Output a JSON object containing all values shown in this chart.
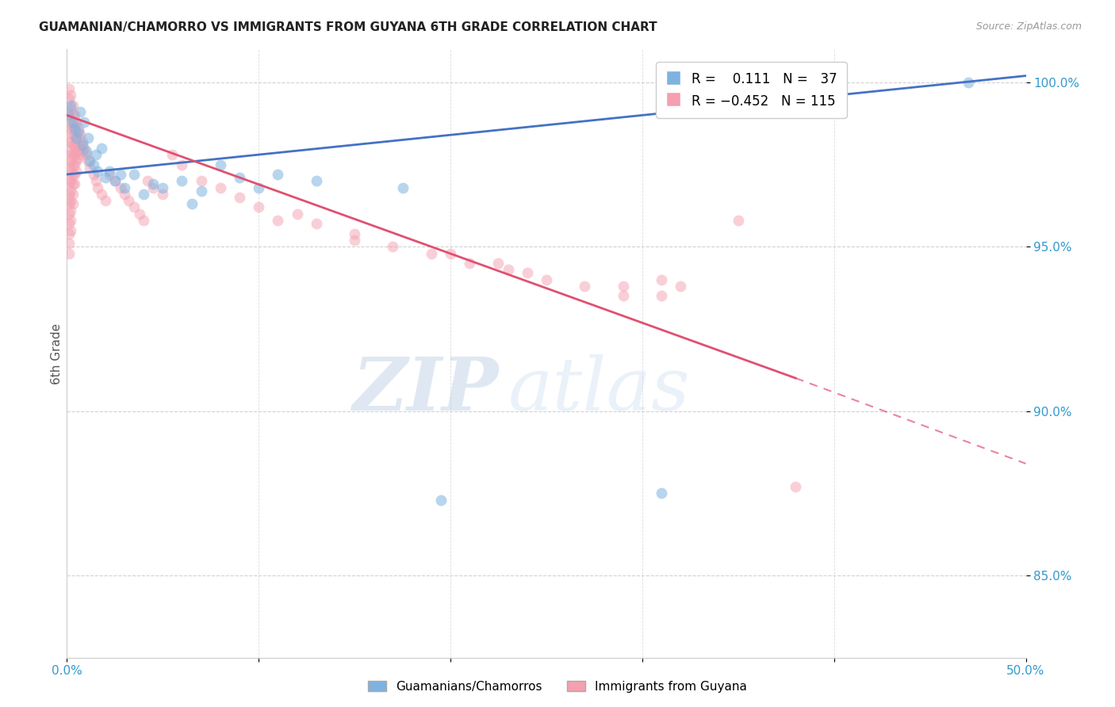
{
  "title": "GUAMANIAN/CHAMORRO VS IMMIGRANTS FROM GUYANA 6TH GRADE CORRELATION CHART",
  "source": "Source: ZipAtlas.com",
  "ylabel": "6th Grade",
  "yticks_labels": [
    "100.0%",
    "95.0%",
    "90.0%",
    "85.0%"
  ],
  "ytick_vals": [
    1.0,
    0.95,
    0.9,
    0.85
  ],
  "xmin": 0.0,
  "xmax": 0.5,
  "ymin": 0.825,
  "ymax": 1.01,
  "blue_color": "#7EB3E0",
  "pink_color": "#F4A0B0",
  "trendline_blue_color": "#4472C4",
  "trendline_pink_color": "#E05070",
  "blue_trendline": [
    [
      0.0,
      0.972
    ],
    [
      0.5,
      1.002
    ]
  ],
  "pink_trendline_solid": [
    [
      0.0,
      0.99
    ],
    [
      0.38,
      0.91
    ]
  ],
  "pink_trendline_dash": [
    [
      0.38,
      0.91
    ],
    [
      0.5,
      0.884
    ]
  ],
  "blue_scatter": [
    [
      0.001,
      0.99
    ],
    [
      0.002,
      0.993
    ],
    [
      0.003,
      0.988
    ],
    [
      0.004,
      0.986
    ],
    [
      0.005,
      0.983
    ],
    [
      0.006,
      0.985
    ],
    [
      0.007,
      0.991
    ],
    [
      0.008,
      0.981
    ],
    [
      0.009,
      0.988
    ],
    [
      0.01,
      0.979
    ],
    [
      0.011,
      0.983
    ],
    [
      0.012,
      0.976
    ],
    [
      0.014,
      0.975
    ],
    [
      0.015,
      0.978
    ],
    [
      0.016,
      0.973
    ],
    [
      0.018,
      0.98
    ],
    [
      0.02,
      0.971
    ],
    [
      0.022,
      0.973
    ],
    [
      0.025,
      0.97
    ],
    [
      0.028,
      0.972
    ],
    [
      0.03,
      0.968
    ],
    [
      0.035,
      0.972
    ],
    [
      0.04,
      0.966
    ],
    [
      0.045,
      0.969
    ],
    [
      0.05,
      0.968
    ],
    [
      0.06,
      0.97
    ],
    [
      0.065,
      0.963
    ],
    [
      0.07,
      0.967
    ],
    [
      0.08,
      0.975
    ],
    [
      0.09,
      0.971
    ],
    [
      0.1,
      0.968
    ],
    [
      0.11,
      0.972
    ],
    [
      0.13,
      0.97
    ],
    [
      0.175,
      0.968
    ],
    [
      0.195,
      0.873
    ],
    [
      0.31,
      0.875
    ],
    [
      0.47,
      1.0
    ]
  ],
  "pink_scatter": [
    [
      0.001,
      0.998
    ],
    [
      0.001,
      0.995
    ],
    [
      0.001,
      0.991
    ],
    [
      0.001,
      0.988
    ],
    [
      0.001,
      0.985
    ],
    [
      0.001,
      0.982
    ],
    [
      0.001,
      0.978
    ],
    [
      0.001,
      0.975
    ],
    [
      0.001,
      0.972
    ],
    [
      0.001,
      0.969
    ],
    [
      0.001,
      0.966
    ],
    [
      0.001,
      0.963
    ],
    [
      0.001,
      0.96
    ],
    [
      0.001,
      0.957
    ],
    [
      0.001,
      0.954
    ],
    [
      0.001,
      0.951
    ],
    [
      0.001,
      0.948
    ],
    [
      0.002,
      0.996
    ],
    [
      0.002,
      0.992
    ],
    [
      0.002,
      0.989
    ],
    [
      0.002,
      0.986
    ],
    [
      0.002,
      0.982
    ],
    [
      0.002,
      0.979
    ],
    [
      0.002,
      0.976
    ],
    [
      0.002,
      0.973
    ],
    [
      0.002,
      0.97
    ],
    [
      0.002,
      0.967
    ],
    [
      0.002,
      0.964
    ],
    [
      0.002,
      0.961
    ],
    [
      0.002,
      0.958
    ],
    [
      0.002,
      0.955
    ],
    [
      0.003,
      0.993
    ],
    [
      0.003,
      0.99
    ],
    [
      0.003,
      0.987
    ],
    [
      0.003,
      0.984
    ],
    [
      0.003,
      0.981
    ],
    [
      0.003,
      0.978
    ],
    [
      0.003,
      0.975
    ],
    [
      0.003,
      0.972
    ],
    [
      0.003,
      0.969
    ],
    [
      0.003,
      0.966
    ],
    [
      0.003,
      0.963
    ],
    [
      0.004,
      0.99
    ],
    [
      0.004,
      0.987
    ],
    [
      0.004,
      0.984
    ],
    [
      0.004,
      0.981
    ],
    [
      0.004,
      0.978
    ],
    [
      0.004,
      0.975
    ],
    [
      0.004,
      0.972
    ],
    [
      0.004,
      0.969
    ],
    [
      0.005,
      0.988
    ],
    [
      0.005,
      0.985
    ],
    [
      0.005,
      0.982
    ],
    [
      0.005,
      0.979
    ],
    [
      0.005,
      0.976
    ],
    [
      0.005,
      0.973
    ],
    [
      0.006,
      0.986
    ],
    [
      0.006,
      0.983
    ],
    [
      0.006,
      0.98
    ],
    [
      0.006,
      0.977
    ],
    [
      0.007,
      0.984
    ],
    [
      0.007,
      0.981
    ],
    [
      0.007,
      0.978
    ],
    [
      0.008,
      0.982
    ],
    [
      0.008,
      0.979
    ],
    [
      0.009,
      0.98
    ],
    [
      0.01,
      0.978
    ],
    [
      0.011,
      0.976
    ],
    [
      0.012,
      0.974
    ],
    [
      0.014,
      0.972
    ],
    [
      0.015,
      0.97
    ],
    [
      0.016,
      0.968
    ],
    [
      0.018,
      0.966
    ],
    [
      0.02,
      0.964
    ],
    [
      0.022,
      0.972
    ],
    [
      0.025,
      0.97
    ],
    [
      0.028,
      0.968
    ],
    [
      0.03,
      0.966
    ],
    [
      0.032,
      0.964
    ],
    [
      0.035,
      0.962
    ],
    [
      0.038,
      0.96
    ],
    [
      0.04,
      0.958
    ],
    [
      0.042,
      0.97
    ],
    [
      0.045,
      0.968
    ],
    [
      0.05,
      0.966
    ],
    [
      0.055,
      0.978
    ],
    [
      0.06,
      0.975
    ],
    [
      0.07,
      0.97
    ],
    [
      0.08,
      0.968
    ],
    [
      0.09,
      0.965
    ],
    [
      0.1,
      0.962
    ],
    [
      0.11,
      0.958
    ],
    [
      0.12,
      0.96
    ],
    [
      0.13,
      0.957
    ],
    [
      0.15,
      0.954
    ],
    [
      0.17,
      0.95
    ],
    [
      0.19,
      0.948
    ],
    [
      0.21,
      0.945
    ],
    [
      0.23,
      0.943
    ],
    [
      0.25,
      0.94
    ],
    [
      0.27,
      0.938
    ],
    [
      0.29,
      0.935
    ],
    [
      0.31,
      0.94
    ],
    [
      0.32,
      0.938
    ],
    [
      0.35,
      0.958
    ],
    [
      0.38,
      0.877
    ],
    [
      0.15,
      0.952
    ],
    [
      0.2,
      0.948
    ],
    [
      0.225,
      0.945
    ],
    [
      0.24,
      0.942
    ],
    [
      0.29,
      0.938
    ],
    [
      0.31,
      0.935
    ]
  ],
  "watermark_zip": "ZIP",
  "watermark_atlas": "atlas",
  "background_color": "#ffffff",
  "grid_color": "#cccccc"
}
